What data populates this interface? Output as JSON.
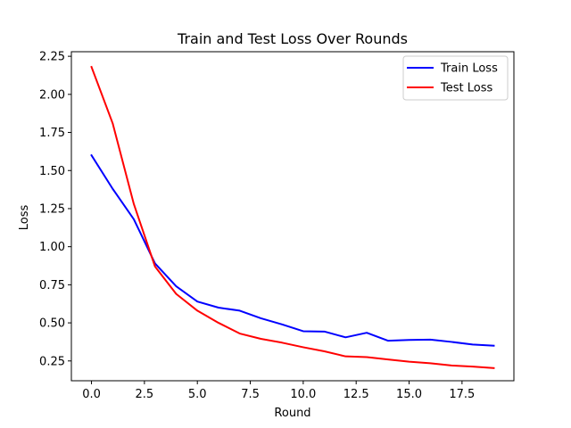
{
  "chart_data": {
    "type": "line",
    "title": "Train and Test Loss Over Rounds",
    "xlabel": "Round",
    "ylabel": "Loss",
    "x": [
      0,
      1,
      2,
      3,
      4,
      5,
      6,
      7,
      8,
      9,
      10,
      11,
      12,
      13,
      14,
      15,
      16,
      17,
      18,
      19
    ],
    "xlim": [
      -0.95,
      19.95
    ],
    "ylim": [
      0.12,
      2.28
    ],
    "xticks": [
      0,
      2.5,
      5,
      7.5,
      10,
      12.5,
      15,
      17.5
    ],
    "xtick_labels": [
      "0.0",
      "2.5",
      "5.0",
      "7.5",
      "10.0",
      "12.5",
      "15.0",
      "17.5"
    ],
    "yticks": [
      0.25,
      0.5,
      0.75,
      1.0,
      1.25,
      1.5,
      1.75,
      2.0,
      2.25
    ],
    "ytick_labels": [
      "0.25",
      "0.50",
      "0.75",
      "1.00",
      "1.25",
      "1.50",
      "1.75",
      "2.00",
      "2.25"
    ],
    "grid": false,
    "legend_position": "top-right",
    "series": [
      {
        "name": "Train Loss",
        "color": "#0000ff",
        "values": [
          1.6,
          1.38,
          1.18,
          0.89,
          0.74,
          0.64,
          0.6,
          0.58,
          0.53,
          0.49,
          0.445,
          0.443,
          0.405,
          0.435,
          0.383,
          0.388,
          0.39,
          0.375,
          0.358,
          0.35
        ]
      },
      {
        "name": "Test Loss",
        "color": "#ff0000",
        "values": [
          2.18,
          1.81,
          1.28,
          0.87,
          0.69,
          0.58,
          0.5,
          0.43,
          0.395,
          0.37,
          0.34,
          0.313,
          0.28,
          0.275,
          0.26,
          0.245,
          0.235,
          0.22,
          0.213,
          0.203
        ]
      }
    ]
  }
}
